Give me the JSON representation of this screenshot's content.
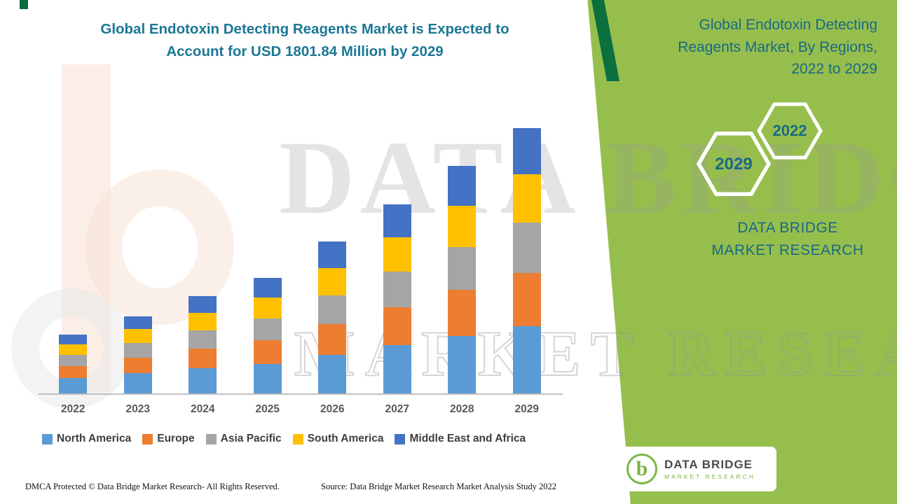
{
  "title": "Global Endotoxin Detecting Reagents Market is Expected to Account for USD 1801.84 Million by 2029",
  "panel": {
    "title": "Global Endotoxin Detecting Reagents Market, By Regions, 2022 to 2029",
    "hex_left": "2029",
    "hex_right": "2022",
    "brand": "DATA BRIDGE MARKET RESEARCH"
  },
  "watermark": {
    "line1": "DATA BRIDGE",
    "line2": "MARKET RESEARCH"
  },
  "footer": {
    "dmca": "DMCA Protected © Data Bridge Market Research- All Rights Reserved.",
    "source": "Source: Data Bridge Market Research Market Analysis Study 2022"
  },
  "logo": {
    "letter": "b",
    "title": "DATA BRIDGE",
    "subtitle": "MARKET RESEARCH"
  },
  "colors": {
    "accent_green": "#96be4d",
    "dark_green": "#0b6f3e",
    "teal": "#186a85"
  },
  "chart_data": {
    "type": "bar",
    "stacked": true,
    "title": "Global Endotoxin Detecting Reagents Market, By Regions, 2022 to 2029",
    "unit": "USD Million",
    "total_2029": 1801.84,
    "categories": [
      "2022",
      "2023",
      "2024",
      "2025",
      "2026",
      "2027",
      "2028",
      "2029"
    ],
    "series": [
      {
        "name": "North America",
        "color": "#5b9bd5",
        "values": [
          110,
          140,
          175,
          205,
          265,
          330,
          395,
          460
        ]
      },
      {
        "name": "Europe",
        "color": "#ed7d31",
        "values": [
          80,
          105,
          132,
          158,
          208,
          258,
          310,
          362
        ]
      },
      {
        "name": "Asia Pacific",
        "color": "#a5a5a5",
        "values": [
          75,
          99,
          125,
          148,
          195,
          242,
          291,
          340
        ]
      },
      {
        "name": "South America",
        "color": "#ffc000",
        "values": [
          72,
          95,
          120,
          142,
          188,
          234,
          281,
          328
        ]
      },
      {
        "name": "Middle East and Africa",
        "color": "#4472c4",
        "values": [
          66,
          87,
          112,
          134,
          177,
          221,
          269,
          311.84
        ]
      }
    ],
    "totals": [
      403,
      526,
      664,
      787,
      1033,
      1285,
      1546,
      1801.84
    ],
    "ylim": [
      0,
      1900
    ],
    "y_axis_visible": false,
    "grid": false,
    "legend_position": "bottom"
  }
}
